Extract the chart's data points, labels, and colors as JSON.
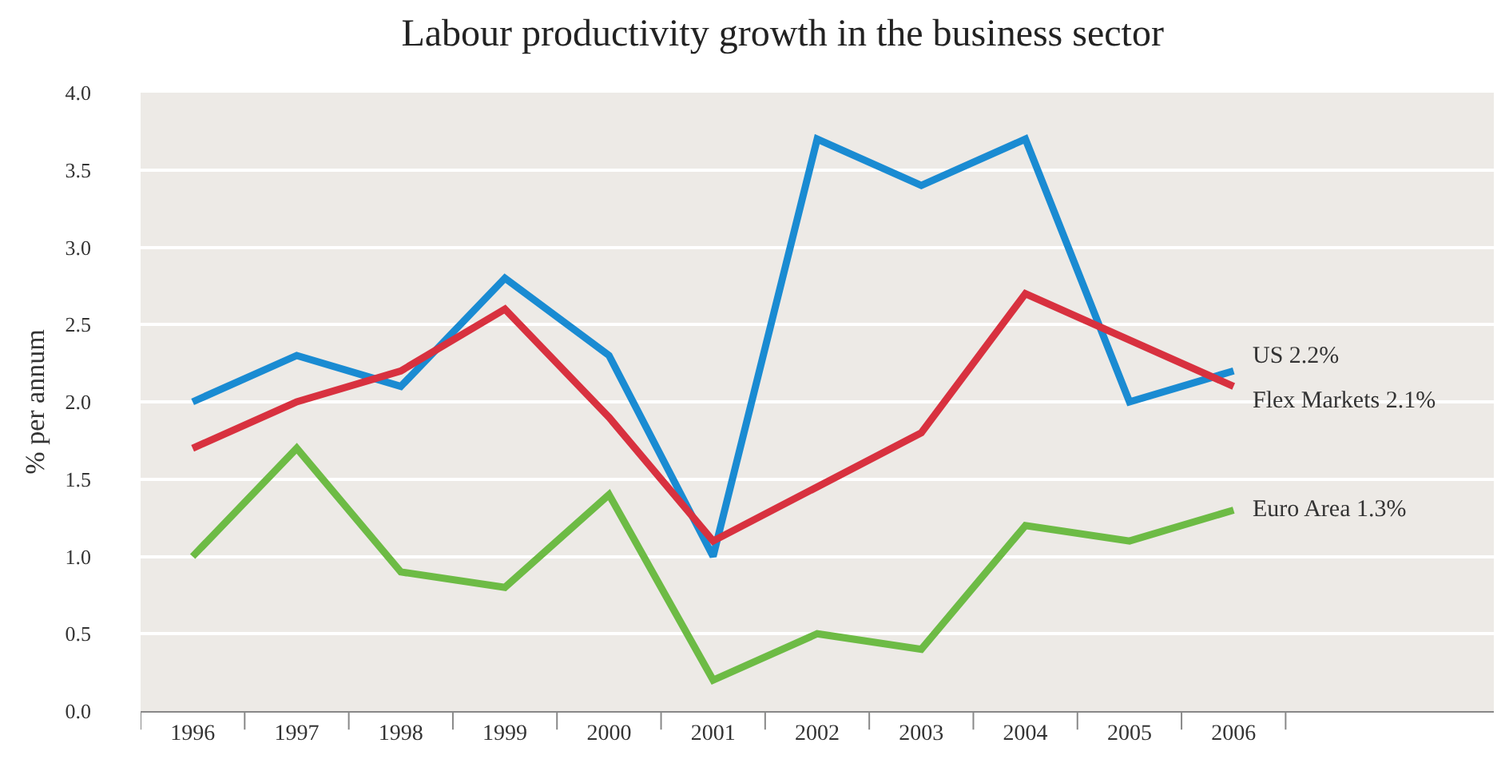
{
  "chart_data": {
    "type": "line",
    "title": "Labour productivity growth in the business sector",
    "ylabel": "% per annum",
    "categories": [
      "1996",
      "1997",
      "1998",
      "1999",
      "2000",
      "2001",
      "2002",
      "2003",
      "2004",
      "2005",
      "2006"
    ],
    "series": [
      {
        "name": "US 2.2%",
        "color": "#1a8bd2",
        "values": [
          2.0,
          2.3,
          2.1,
          2.8,
          2.3,
          1.0,
          3.7,
          3.4,
          3.7,
          2.0,
          2.2
        ]
      },
      {
        "name": "Flex Markets 2.1%",
        "color": "#d8313f",
        "values": [
          1.7,
          2.0,
          2.2,
          2.6,
          1.9,
          1.1,
          1.45,
          1.8,
          2.7,
          2.4,
          2.1
        ]
      },
      {
        "name": "Euro Area 1.3%",
        "color": "#6dbb45",
        "values": [
          1.0,
          1.7,
          0.9,
          0.8,
          1.4,
          0.2,
          0.5,
          0.4,
          1.2,
          1.1,
          1.3
        ]
      }
    ],
    "ylim": [
      0,
      4
    ],
    "yticks": [
      {
        "value": 0,
        "label": "0.0"
      },
      {
        "value": 0.5,
        "label": "0.5"
      },
      {
        "value": 1,
        "label": "1.0"
      },
      {
        "value": 1.5,
        "label": "1.5"
      },
      {
        "value": 2,
        "label": "2.0"
      },
      {
        "value": 2.5,
        "label": "2.5"
      },
      {
        "value": 3,
        "label": "3.0"
      },
      {
        "value": 3.5,
        "label": "3.5"
      },
      {
        "value": 4,
        "label": "4.0"
      }
    ],
    "grid": "y",
    "legend": false,
    "marker": "none",
    "line_style": "solid"
  }
}
